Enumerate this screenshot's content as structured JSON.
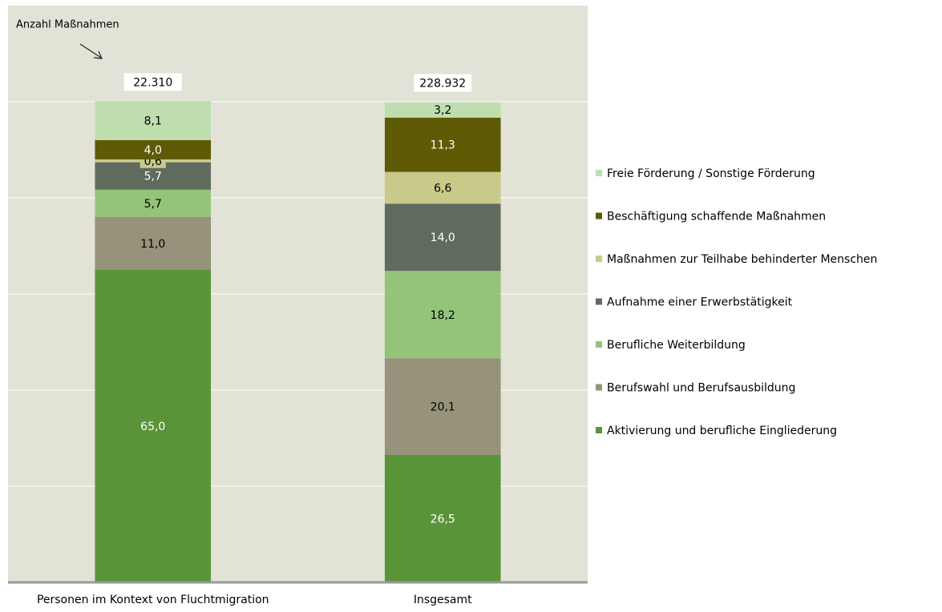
{
  "chart_data": {
    "type": "stacked_bar",
    "annotation": "Anzahl Maßnahmen",
    "categories": [
      "Personen im Kontext von Fluchtmigration",
      "Insgesamt"
    ],
    "totals": {
      "values": [
        22310,
        228932
      ],
      "value_labels": [
        "22.310",
        "228.932"
      ]
    },
    "series": [
      {
        "name": "Aktivierung und berufliche Eingliederung",
        "color": "#5a9439",
        "values": [
          65.0,
          26.5
        ],
        "value_labels": [
          "65,0",
          "26,5"
        ]
      },
      {
        "name": "Berufswahl und Berufsausbildung",
        "color": "#96937a",
        "values": [
          11.0,
          20.1
        ],
        "value_labels": [
          "11,0",
          "20,1"
        ]
      },
      {
        "name": "Berufliche Weiterbildung",
        "color": "#93c47a",
        "values": [
          5.7,
          18.2
        ],
        "value_labels": [
          "5,7",
          "18,2"
        ]
      },
      {
        "name": "Aufnahme einer Erwerbstätigkeit",
        "color": "#606b5e",
        "values": [
          5.7,
          14.0
        ],
        "value_labels": [
          "5,7",
          "14,0"
        ]
      },
      {
        "name": "Maßnahmen zur Teilhabe behinderter Menschen",
        "color": "#c9c98a",
        "values": [
          0.6,
          6.6
        ],
        "value_labels": [
          "0,6",
          "6,6"
        ]
      },
      {
        "name": "Beschäftigung schaffende Maßnahmen",
        "color": "#5e5a05",
        "values": [
          4.0,
          11.3
        ],
        "value_labels": [
          "4,0",
          "11,3"
        ]
      },
      {
        "name": "Freie Förderung / Sonstige Förderung",
        "color": "#bfdeb0",
        "values": [
          8.1,
          3.2
        ],
        "value_labels": [
          "8,1",
          "3,2"
        ]
      }
    ],
    "ylim": [
      0,
      120
    ],
    "yticks": [
      0,
      20,
      40,
      60,
      80,
      100
    ],
    "grid": true,
    "legend": "right"
  }
}
